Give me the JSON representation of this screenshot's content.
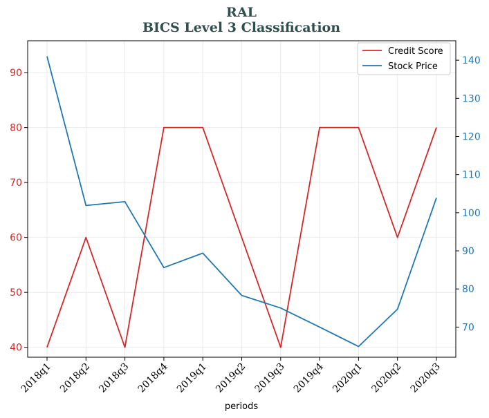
{
  "chart_data": {
    "type": "line",
    "title": "RAL",
    "subtitle": "BICS Level 3 Classification",
    "xlabel": "periods",
    "categories": [
      "2018q1",
      "2018q2",
      "2018q3",
      "2018q4",
      "2019q1",
      "2019q2",
      "2019q3",
      "2019q4",
      "2020q1",
      "2020q2",
      "2020q3"
    ],
    "series": [
      {
        "name": "Credit Score",
        "axis": "left",
        "color": "#d62728",
        "values": [
          40,
          60,
          40,
          80,
          80,
          60,
          40,
          80,
          80,
          60,
          80
        ]
      },
      {
        "name": "Stock Price",
        "axis": "right",
        "color": "#1f77b4",
        "values": [
          141,
          101.9,
          102.9,
          85.6,
          89.4,
          78.3,
          75.0,
          70.0,
          64.9,
          74.7,
          103.9
        ]
      }
    ],
    "y_left": {
      "ylim": [
        38.2,
        95.8
      ],
      "ticks": [
        40,
        50,
        60,
        70,
        80,
        90
      ],
      "color": "#d62728"
    },
    "y_right": {
      "ylim": [
        62.1,
        145.1
      ],
      "ticks": [
        70,
        80,
        90,
        100,
        110,
        120,
        130,
        140
      ],
      "color": "#1f77b4"
    },
    "grid": true,
    "legend_position": "top-right"
  }
}
